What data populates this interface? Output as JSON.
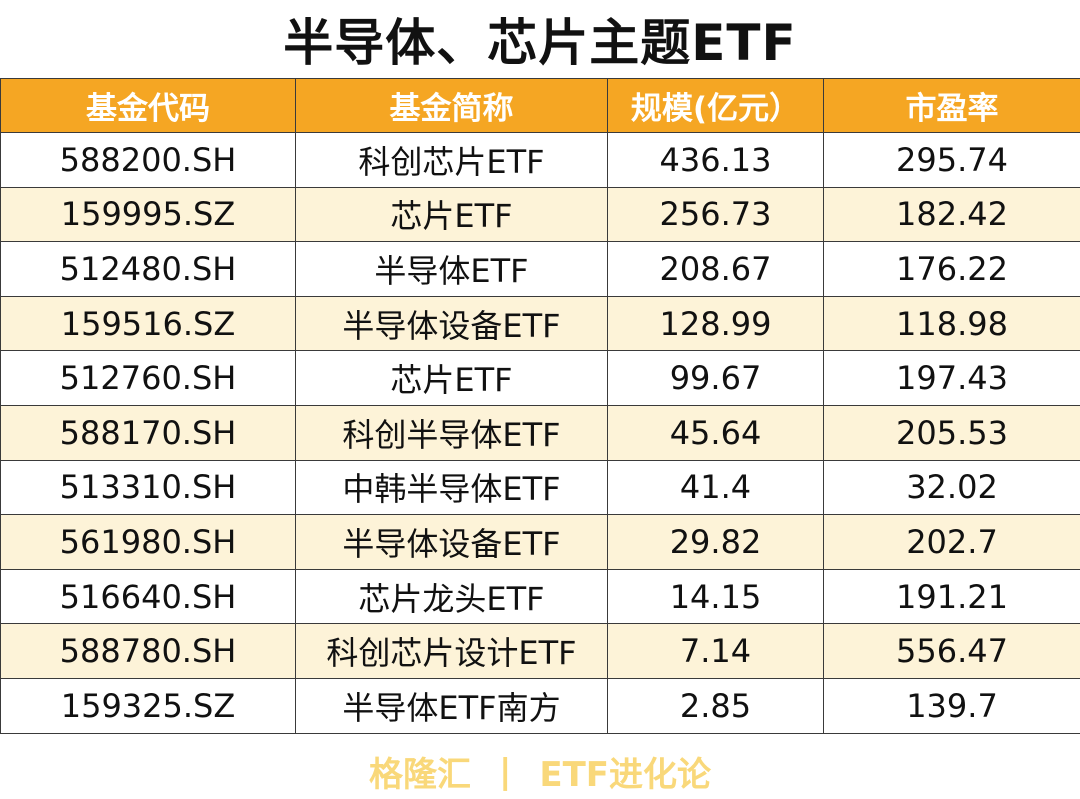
{
  "title": "半导体、芯片主题ETF",
  "headers": [
    "基金代码",
    "基金简称",
    "规模(亿元）",
    "市盈率"
  ],
  "rows": [
    {
      "code": "588200.SH",
      "name": "科创芯片ETF",
      "size": "436.13",
      "pe": "295.74"
    },
    {
      "code": "159995.SZ",
      "name": "芯片ETF",
      "size": "256.73",
      "pe": "182.42"
    },
    {
      "code": "512480.SH",
      "name": "半导体ETF",
      "size": "208.67",
      "pe": "176.22"
    },
    {
      "code": "159516.SZ",
      "name": "半导体设备ETF",
      "size": "128.99",
      "pe": "118.98"
    },
    {
      "code": "512760.SH",
      "name": "芯片ETF",
      "size": "99.67",
      "pe": "197.43"
    },
    {
      "code": "588170.SH",
      "name": "科创半导体ETF",
      "size": "45.64",
      "pe": "205.53"
    },
    {
      "code": "513310.SH",
      "name": "中韩半导体ETF",
      "size": "41.4",
      "pe": "32.02"
    },
    {
      "code": "561980.SH",
      "name": "半导体设备ETF",
      "size": "29.82",
      "pe": "202.7"
    },
    {
      "code": "516640.SH",
      "name": "芯片龙头ETF",
      "size": "14.15",
      "pe": "191.21"
    },
    {
      "code": "588780.SH",
      "name": "科创芯片设计ETF",
      "size": "7.14",
      "pe": "556.47"
    },
    {
      "code": "159325.SZ",
      "name": "半导体ETF南方",
      "size": "2.85",
      "pe": "139.7"
    }
  ],
  "footer": {
    "left": "格隆汇",
    "separator": "|",
    "right": "ETF进化论"
  },
  "colors": {
    "header_bg": "#f5a623",
    "alt_row_bg": "#fdf3d8",
    "footer_text": "#f9d87a"
  }
}
